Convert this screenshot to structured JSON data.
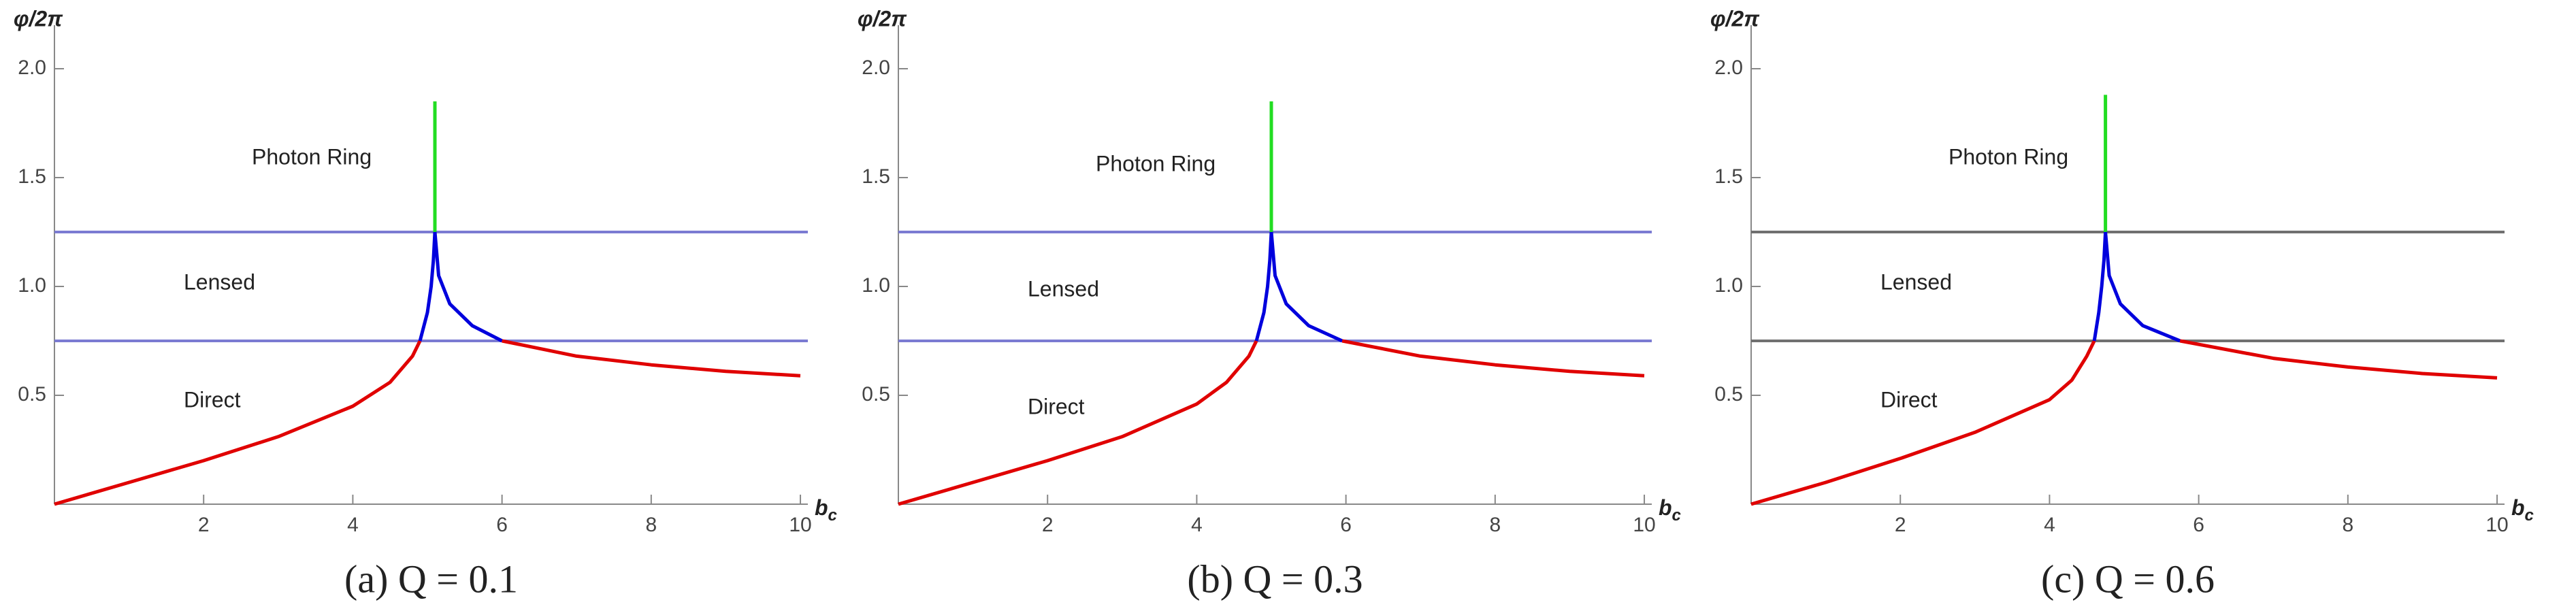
{
  "chart_data": [
    {
      "type": "line",
      "caption": "(a) Q = 0.1",
      "ylabel": "φ/2π",
      "xlabel": "b",
      "xlabel_sub": "c",
      "annotations": [
        "Photon Ring",
        "Lensed",
        "Direct"
      ],
      "xlim": [
        0,
        10.1
      ],
      "ylim": [
        0,
        2.2
      ],
      "xticks": [
        2,
        4,
        6,
        8,
        10
      ],
      "yticks": [
        0.5,
        {
          "value": 1,
          "label": "1.0"
        },
        1.5,
        {
          "value": 2,
          "label": "2.0"
        }
      ],
      "hlines": [
        0.75,
        1.25
      ],
      "hline_color": "#7b7bd2",
      "series": [
        {
          "color": "#e00000",
          "x": [
            0,
            1,
            2,
            3,
            4,
            4.5,
            4.8,
            4.9
          ],
          "values": [
            0,
            0.1,
            0.2,
            0.31,
            0.45,
            0.56,
            0.68,
            0.75
          ]
        },
        {
          "color": "#0000dd",
          "x": [
            4.9,
            5.0,
            5.05,
            5.08,
            5.1
          ],
          "values": [
            0.75,
            0.88,
            1.0,
            1.12,
            1.25
          ]
        },
        {
          "color": "#22dd22",
          "x": [
            5.1,
            5.1
          ],
          "values": [
            1.25,
            1.85
          ]
        },
        {
          "color": "#0000dd",
          "x": [
            5.1,
            5.15,
            5.3,
            5.6,
            6.0
          ],
          "values": [
            1.25,
            1.05,
            0.92,
            0.82,
            0.75
          ]
        },
        {
          "color": "#e00000",
          "x": [
            6.0,
            7,
            8,
            9,
            10
          ],
          "values": [
            0.75,
            0.68,
            0.64,
            0.61,
            0.59
          ]
        }
      ]
    },
    {
      "type": "line",
      "caption": "(b) Q = 0.3",
      "ylabel": "φ/2π",
      "xlabel": "b",
      "xlabel_sub": "c",
      "annotations": [
        "Photon Ring",
        "Lensed",
        "Direct"
      ],
      "xlim": [
        0,
        10.1
      ],
      "ylim": [
        0,
        2.2
      ],
      "xticks": [
        2,
        4,
        6,
        8,
        10
      ],
      "yticks": [
        0.5,
        {
          "value": 1,
          "label": "1.0"
        },
        1.5,
        {
          "value": 2,
          "label": "2.0"
        }
      ],
      "hlines": [
        0.75,
        1.25
      ],
      "hline_color": "#7b7bd2",
      "series": [
        {
          "color": "#e00000",
          "x": [
            0,
            1,
            2,
            3,
            4,
            4.4,
            4.7,
            4.8
          ],
          "values": [
            0,
            0.1,
            0.2,
            0.31,
            0.46,
            0.56,
            0.68,
            0.75
          ]
        },
        {
          "color": "#0000dd",
          "x": [
            4.8,
            4.9,
            4.95,
            4.98,
            5.0
          ],
          "values": [
            0.75,
            0.88,
            1.0,
            1.12,
            1.25
          ]
        },
        {
          "color": "#22dd22",
          "x": [
            5.0,
            5.0
          ],
          "values": [
            1.25,
            1.85
          ]
        },
        {
          "color": "#0000dd",
          "x": [
            5.0,
            5.05,
            5.2,
            5.5,
            5.95
          ],
          "values": [
            1.25,
            1.05,
            0.92,
            0.82,
            0.75
          ]
        },
        {
          "color": "#e00000",
          "x": [
            5.95,
            7,
            8,
            9,
            10
          ],
          "values": [
            0.75,
            0.68,
            0.64,
            0.61,
            0.59
          ]
        }
      ]
    },
    {
      "type": "line",
      "caption": "(c) Q = 0.6",
      "ylabel": "φ/2π",
      "xlabel": "b",
      "xlabel_sub": "c",
      "annotations": [
        "Photon Ring",
        "Lensed",
        "Direct"
      ],
      "xlim": [
        0,
        10.1
      ],
      "ylim": [
        0,
        2.2
      ],
      "xticks": [
        2,
        4,
        6,
        8,
        10
      ],
      "yticks": [
        0.5,
        {
          "value": 1,
          "label": "1.0"
        },
        1.5,
        {
          "value": 2,
          "label": "2.0"
        }
      ],
      "hlines": [
        0.75,
        1.25
      ],
      "hline_color": "#707070",
      "series": [
        {
          "color": "#e00000",
          "x": [
            0,
            1,
            2,
            3,
            4,
            4.3,
            4.5,
            4.6
          ],
          "values": [
            0,
            0.1,
            0.21,
            0.33,
            0.48,
            0.57,
            0.68,
            0.75
          ]
        },
        {
          "color": "#0000dd",
          "x": [
            4.6,
            4.66,
            4.7,
            4.73,
            4.75
          ],
          "values": [
            0.75,
            0.88,
            1.0,
            1.12,
            1.25
          ]
        },
        {
          "color": "#22dd22",
          "x": [
            4.75,
            4.75
          ],
          "values": [
            1.25,
            1.88
          ]
        },
        {
          "color": "#0000dd",
          "x": [
            4.75,
            4.8,
            4.95,
            5.25,
            5.75
          ],
          "values": [
            1.25,
            1.05,
            0.92,
            0.82,
            0.75
          ]
        },
        {
          "color": "#e00000",
          "x": [
            5.75,
            7,
            8,
            9,
            10
          ],
          "values": [
            0.75,
            0.67,
            0.63,
            0.6,
            0.58
          ]
        }
      ]
    }
  ]
}
